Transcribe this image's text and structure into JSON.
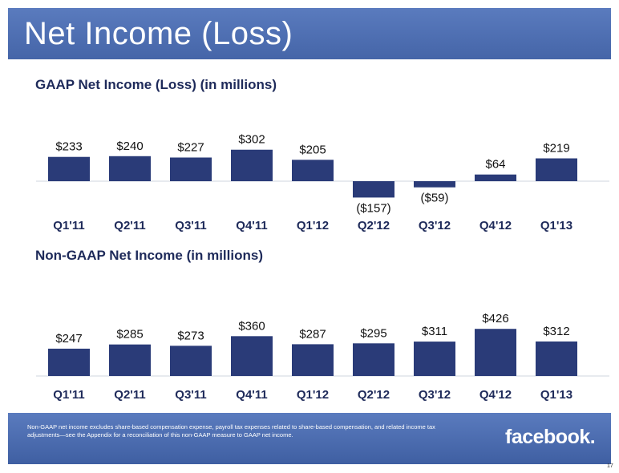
{
  "slide": {
    "title": "Net Income (Loss)",
    "footnote": "Non-GAAP net income excludes share-based compensation expense, payroll tax expenses related to share-based compensation, and related income tax adjustments—see the Appendix for a reconciliation of this non-GAAP measure to GAAP net income.",
    "logo_text": "facebook.",
    "page_number": "17"
  },
  "colors": {
    "banner": "#4a6cb0",
    "bar": "#2a3b78",
    "title_text": "#1e2a5a"
  },
  "chart_data": [
    {
      "type": "bar",
      "title": "GAAP Net Income (Loss) (in millions)",
      "categories": [
        "Q1'11",
        "Q2'11",
        "Q3'11",
        "Q4'11",
        "Q1'12",
        "Q2'12",
        "Q3'12",
        "Q4'12",
        "Q1'13"
      ],
      "values": [
        233,
        240,
        227,
        302,
        205,
        -157,
        -59,
        64,
        219
      ],
      "labels": [
        "$233",
        "$240",
        "$227",
        "$302",
        "$205",
        "($157)",
        "($59)",
        "$64",
        "$219"
      ],
      "xlabel": "",
      "ylabel": "",
      "grid": false
    },
    {
      "type": "bar",
      "title": "Non-GAAP Net Income (in millions)",
      "categories": [
        "Q1'11",
        "Q2'11",
        "Q3'11",
        "Q4'11",
        "Q1'12",
        "Q2'12",
        "Q3'12",
        "Q4'12",
        "Q1'13"
      ],
      "values": [
        247,
        285,
        273,
        360,
        287,
        295,
        311,
        426,
        312
      ],
      "labels": [
        "$247",
        "$285",
        "$273",
        "$360",
        "$287",
        "$295",
        "$311",
        "$426",
        "$312"
      ],
      "xlabel": "",
      "ylabel": "",
      "grid": false
    }
  ]
}
